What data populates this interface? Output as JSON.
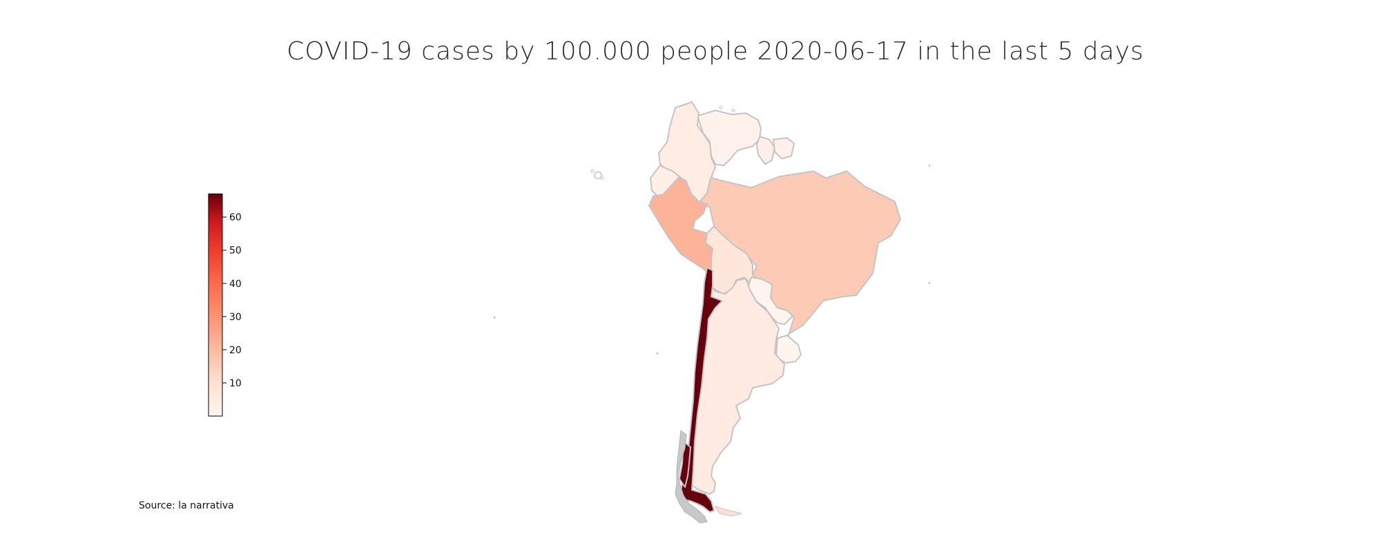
{
  "title": "COVID-19 cases by 100.000 people 2020-06-17 in the last 5 days",
  "source": "Source: la narrativa",
  "colors": {
    "scale_low": "#fff5f0",
    "scale_high": "#67000d",
    "border": "#c4c4c4",
    "no_data": "#c8c8c8"
  },
  "colorbar": {
    "min": 0,
    "max": 67,
    "ticks": [
      {
        "value": 10,
        "label": "10"
      },
      {
        "value": 20,
        "label": "20"
      },
      {
        "value": 30,
        "label": "30"
      },
      {
        "value": 40,
        "label": "40"
      },
      {
        "value": 50,
        "label": "50"
      },
      {
        "value": 60,
        "label": "60"
      }
    ]
  },
  "countries": [
    {
      "id": "colombia",
      "value": 4
    },
    {
      "id": "venezuela",
      "value": 1.5
    },
    {
      "id": "guyana",
      "value": 3
    },
    {
      "id": "suriname",
      "value": 2
    },
    {
      "id": "ecuador",
      "value": 3
    },
    {
      "id": "peru",
      "value": 22
    },
    {
      "id": "brazil",
      "value": 16
    },
    {
      "id": "bolivia",
      "value": 7
    },
    {
      "id": "paraguay",
      "value": 0.5
    },
    {
      "id": "argentina",
      "value": 5
    },
    {
      "id": "uruguay",
      "value": 0.2
    },
    {
      "id": "chile",
      "value": 67
    }
  ]
}
